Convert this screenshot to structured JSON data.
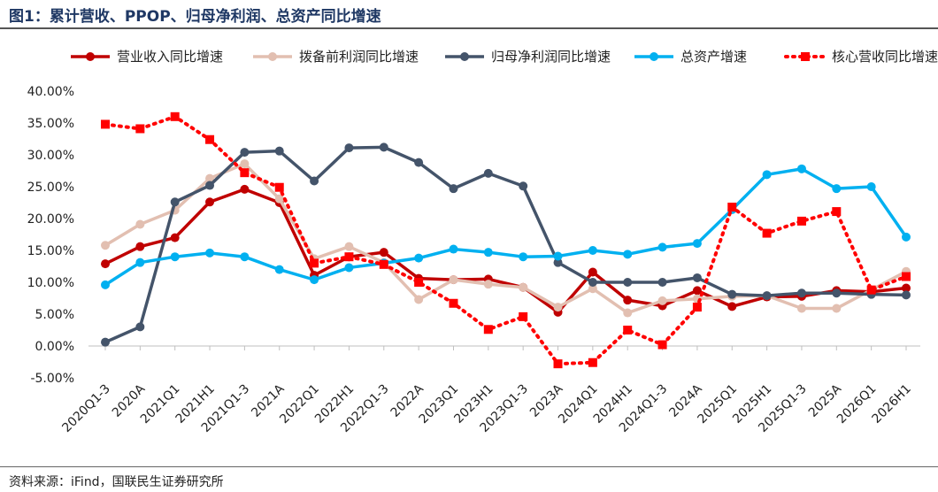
{
  "figure": {
    "title": "图1：累计营收、PPOP、归母净利润、总资产同比增速",
    "source": "资料来源：iFind，国联民生证券研究所"
  },
  "chart_data": {
    "type": "line",
    "categories": [
      "2020Q1-3",
      "2020A",
      "2021Q1",
      "2021H1",
      "2021Q1-3",
      "2021A",
      "2022Q1",
      "2022H1",
      "2022Q1-3",
      "2022A",
      "2023Q1",
      "2023H1",
      "2023Q1-3",
      "2023A",
      "2024Q1",
      "2024H1",
      "2024Q1-3",
      "2024A",
      "2025Q1",
      "2025H1",
      "2025Q1-3",
      "2025A",
      "2026Q1",
      "2026H1"
    ],
    "ylim": [
      -5,
      40
    ],
    "yticks": [
      -5,
      0,
      5,
      10,
      15,
      20,
      25,
      30,
      35,
      40
    ],
    "ytick_labels": [
      "-5.00%",
      "0.00%",
      "5.00%",
      "10.00%",
      "15.00%",
      "20.00%",
      "25.00%",
      "30.00%",
      "35.00%",
      "40.00%"
    ],
    "grid": false,
    "legend_position": "top",
    "series": [
      {
        "name": "营业收入同比增速",
        "color": "#c00000",
        "style": "solid",
        "values": [
          12.9,
          15.6,
          17.0,
          22.6,
          24.6,
          22.5,
          11.1,
          14.0,
          14.7,
          10.6,
          10.4,
          10.5,
          9.2,
          5.3,
          11.6,
          7.2,
          6.3,
          8.7,
          6.2,
          7.7,
          7.8,
          8.7,
          8.5,
          9.1
        ]
      },
      {
        "name": "拨备前利润同比增速",
        "color": "#e2bfb1",
        "style": "solid",
        "values": [
          15.8,
          19.1,
          21.3,
          26.3,
          28.6,
          23.1,
          13.7,
          15.6,
          13.1,
          7.3,
          10.4,
          9.7,
          9.2,
          6.1,
          9.0,
          5.2,
          7.1,
          7.4,
          7.8,
          7.9,
          5.9,
          5.9,
          8.8,
          11.7
        ]
      },
      {
        "name": "归母净利润同比增速",
        "color": "#44546a",
        "style": "solid",
        "values": [
          0.6,
          3.0,
          22.6,
          25.2,
          30.4,
          30.6,
          25.9,
          31.1,
          31.2,
          28.8,
          24.7,
          27.1,
          25.1,
          13.1,
          10.0,
          10.0,
          10.0,
          10.7,
          8.1,
          7.9,
          8.3,
          8.3,
          8.1,
          8.0
        ]
      },
      {
        "name": "总资产增速",
        "color": "#00b0f0",
        "style": "solid",
        "values": [
          9.6,
          13.1,
          14.0,
          14.6,
          14.0,
          12.0,
          10.4,
          12.3,
          13.0,
          13.8,
          15.2,
          14.7,
          14.0,
          14.1,
          15.0,
          14.4,
          15.5,
          16.1,
          21.4,
          26.9,
          27.8,
          24.7,
          25.0,
          17.1
        ]
      },
      {
        "name": "核心营收同比增速",
        "color": "#ff0000",
        "style": "dotted",
        "values": [
          34.8,
          34.1,
          36.0,
          32.4,
          27.2,
          24.9,
          13.0,
          14.0,
          12.8,
          10.0,
          6.7,
          2.6,
          4.6,
          -2.8,
          -2.6,
          2.5,
          0.2,
          6.1,
          21.8,
          17.7,
          19.6,
          21.1,
          8.8,
          10.9
        ]
      }
    ]
  }
}
